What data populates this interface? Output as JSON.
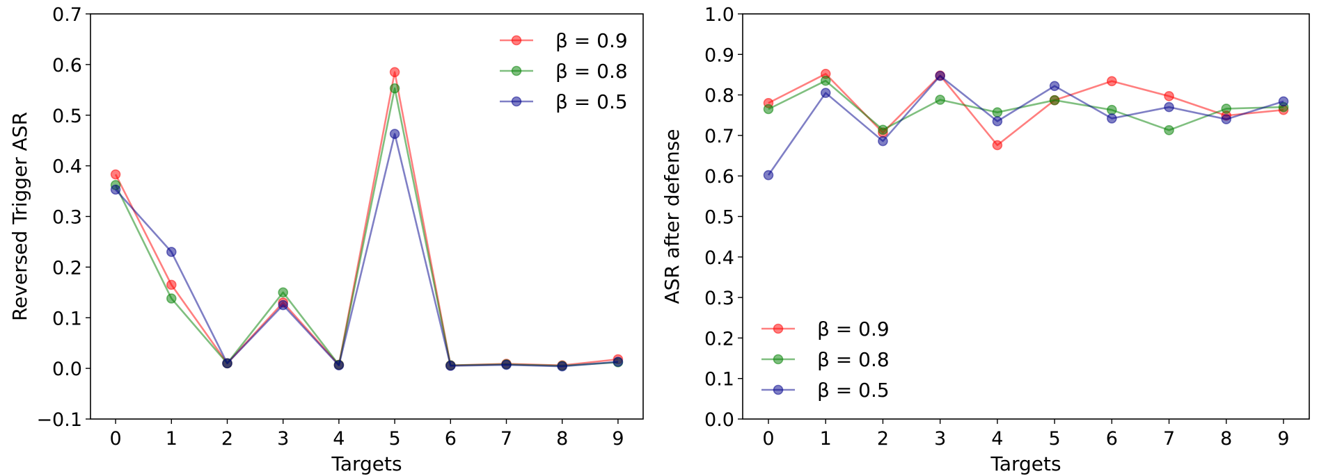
{
  "chart_data": [
    {
      "type": "line",
      "title": "",
      "xlabel": "Targets",
      "ylabel": "Reversed Trigger ASR",
      "x": [
        0,
        1,
        2,
        3,
        4,
        5,
        6,
        7,
        8,
        9
      ],
      "xticks": [
        "0",
        "1",
        "2",
        "3",
        "4",
        "5",
        "6",
        "7",
        "8",
        "9"
      ],
      "yticks": [
        "−0.1",
        "0.0",
        "0.1",
        "0.2",
        "0.3",
        "0.4",
        "0.5",
        "0.6",
        "0.7"
      ],
      "ylim": [
        -0.1,
        0.7
      ],
      "xlim": [
        -0.45,
        9.45
      ],
      "legend_position": "upper-right",
      "grid": false,
      "series": [
        {
          "name": "β = 0.9",
          "color": "#ff0000",
          "values": [
            0.383,
            0.165,
            0.01,
            0.13,
            0.007,
            0.585,
            0.006,
            0.009,
            0.006,
            0.018
          ]
        },
        {
          "name": "β = 0.8",
          "color": "#008000",
          "values": [
            0.362,
            0.138,
            0.01,
            0.15,
            0.007,
            0.553,
            0.006,
            0.008,
            0.005,
            0.012
          ]
        },
        {
          "name": "β = 0.5",
          "color": "#00008b",
          "values": [
            0.353,
            0.23,
            0.01,
            0.125,
            0.006,
            0.463,
            0.005,
            0.007,
            0.004,
            0.013
          ]
        }
      ]
    },
    {
      "type": "line",
      "title": "",
      "xlabel": "Targets",
      "ylabel": "ASR after defense",
      "x": [
        0,
        1,
        2,
        3,
        4,
        5,
        6,
        7,
        8,
        9
      ],
      "xticks": [
        "0",
        "1",
        "2",
        "3",
        "4",
        "5",
        "6",
        "7",
        "8",
        "9"
      ],
      "yticks": [
        "0.0",
        "0.1",
        "0.2",
        "0.3",
        "0.4",
        "0.5",
        "0.6",
        "0.7",
        "0.8",
        "0.9",
        "1.0"
      ],
      "ylim": [
        0.0,
        1.0
      ],
      "xlim": [
        -0.45,
        9.45
      ],
      "legend_position": "lower-left",
      "grid": false,
      "series": [
        {
          "name": "β = 0.9",
          "color": "#ff0000",
          "values": [
            0.78,
            0.852,
            0.707,
            0.848,
            0.676,
            0.787,
            0.834,
            0.797,
            0.749,
            0.763
          ]
        },
        {
          "name": "β = 0.8",
          "color": "#008000",
          "values": [
            0.765,
            0.835,
            0.714,
            0.788,
            0.757,
            0.787,
            0.763,
            0.713,
            0.766,
            0.77
          ]
        },
        {
          "name": "β = 0.5",
          "color": "#00008b",
          "values": [
            0.602,
            0.805,
            0.686,
            0.847,
            0.735,
            0.822,
            0.742,
            0.77,
            0.74,
            0.784
          ]
        }
      ]
    }
  ]
}
